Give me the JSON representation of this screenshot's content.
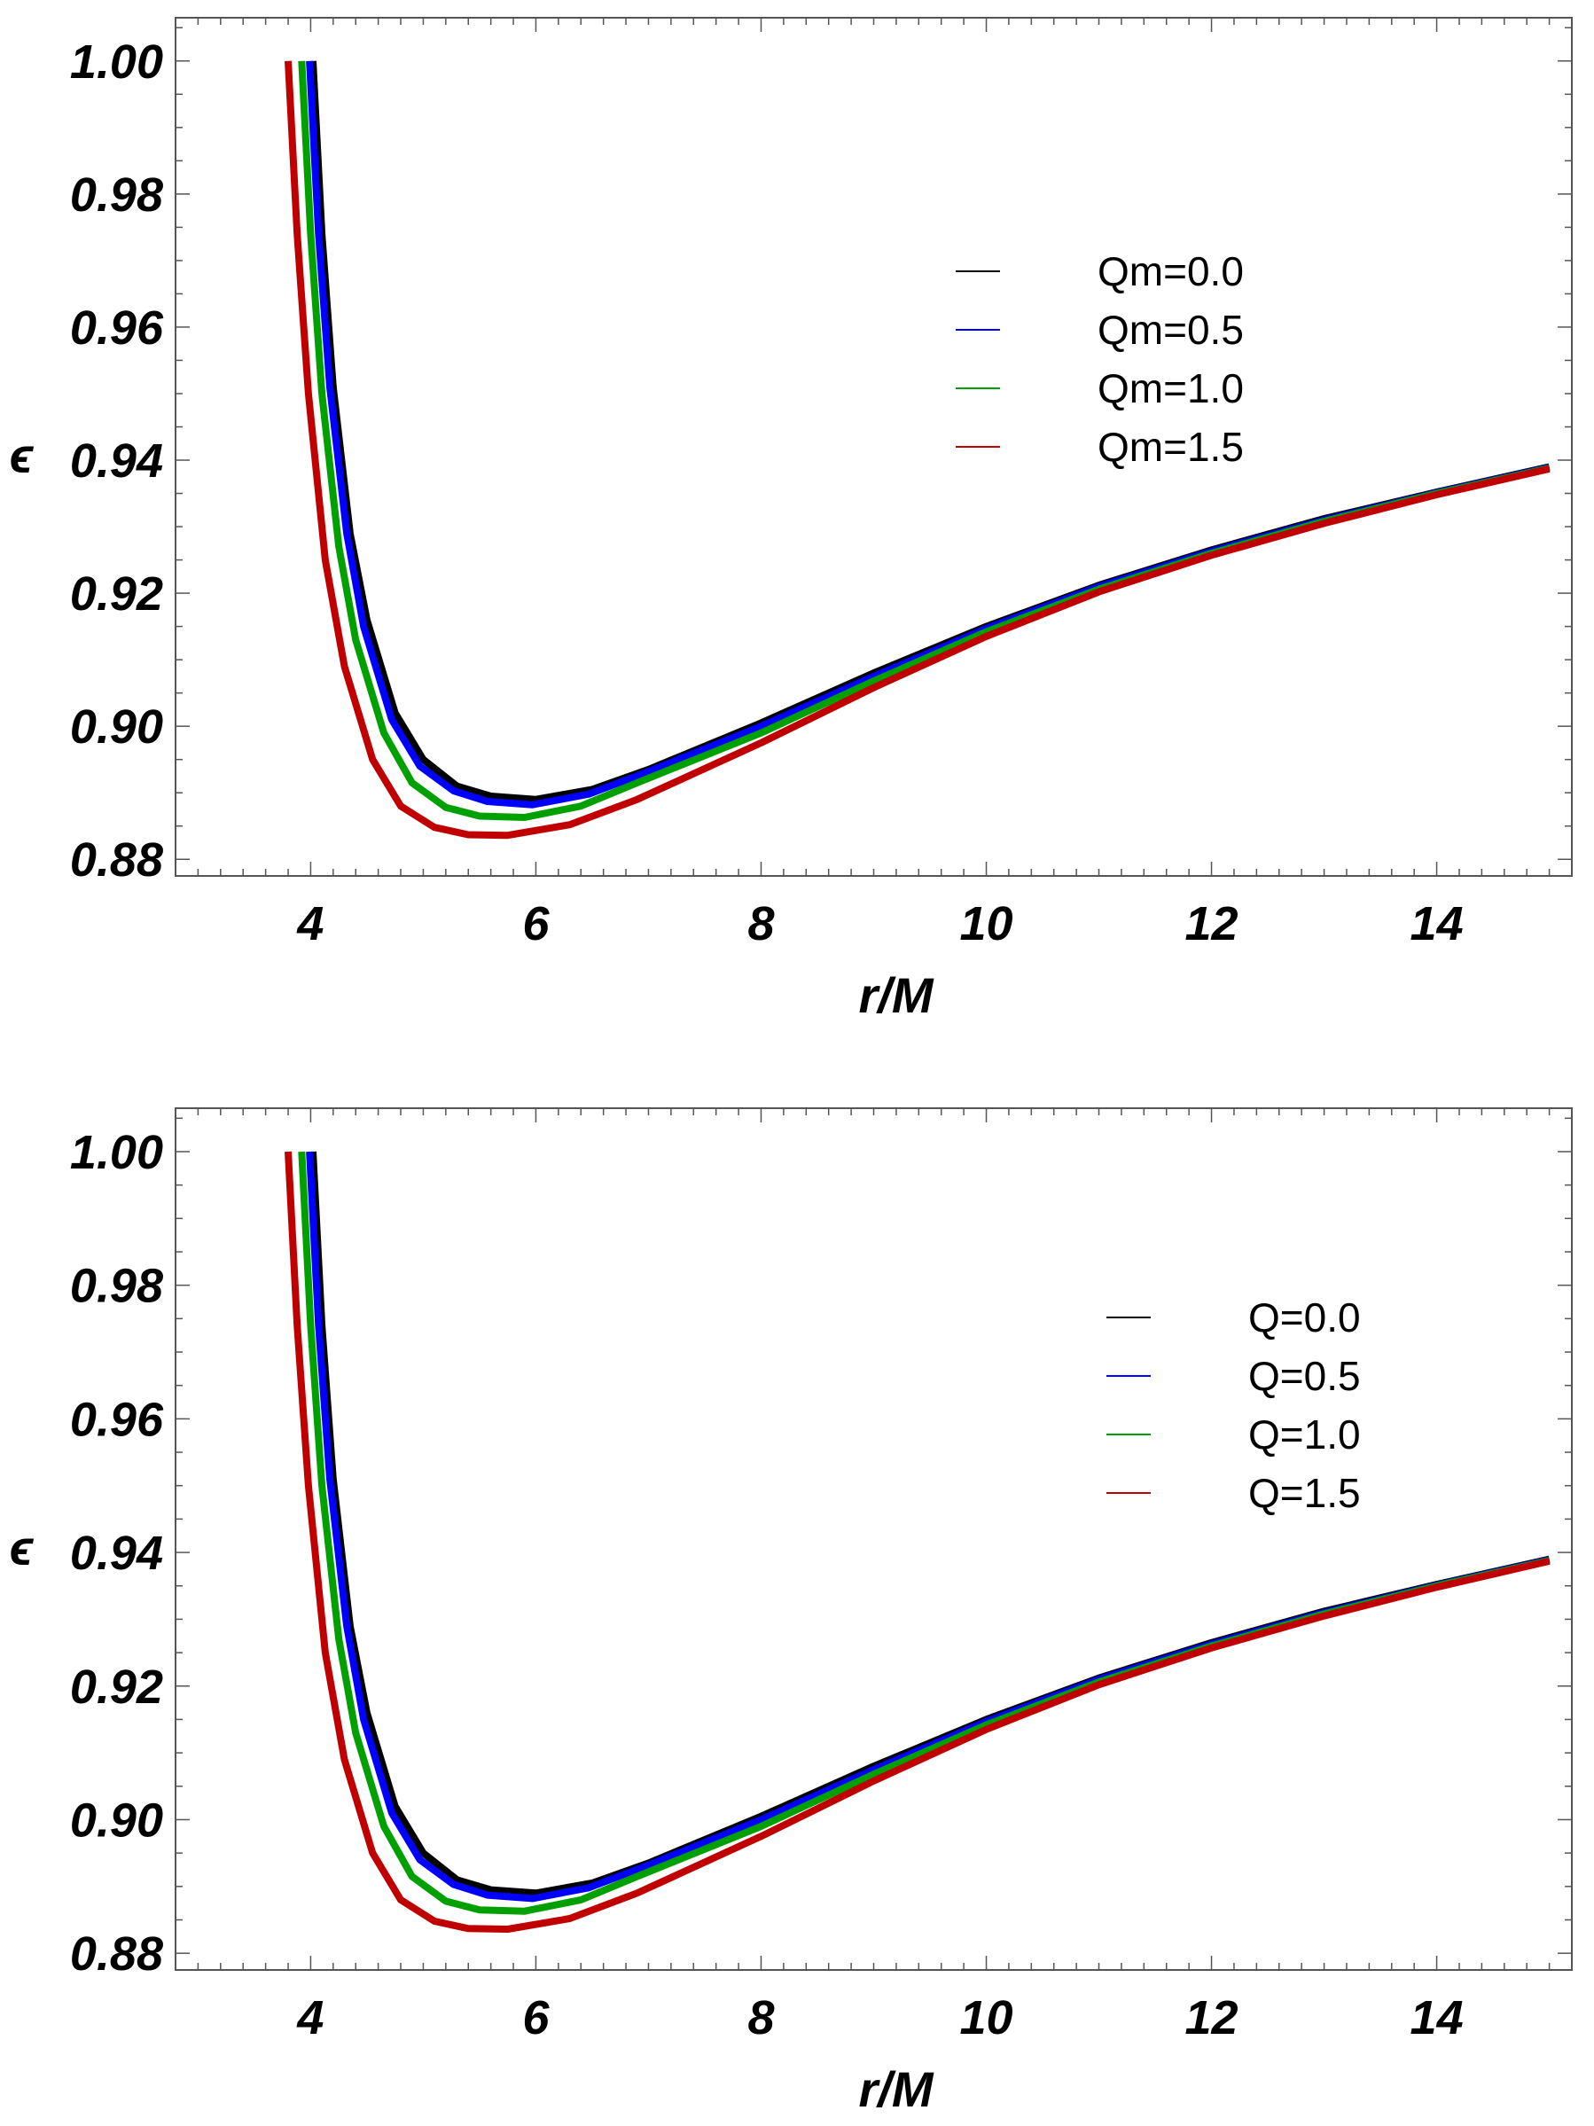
{
  "chart_data": [
    {
      "type": "line",
      "xlabel": "r/M",
      "ylabel": "ϵ",
      "xlim": [
        2.8,
        15.2
      ],
      "ylim": [
        0.8775,
        1.0065
      ],
      "xticks": [
        "4",
        "6",
        "8",
        "10",
        "12",
        "14"
      ],
      "xtick_values": [
        4,
        6,
        8,
        10,
        12,
        14
      ],
      "yticks": [
        "0.88",
        "0.90",
        "0.92",
        "0.94",
        "0.96",
        "0.98",
        "1.00"
      ],
      "ytick_values": [
        0.88,
        0.9,
        0.92,
        0.94,
        0.96,
        0.98,
        1.0
      ],
      "legend_position": "top-right",
      "series": [
        {
          "name": "Qm=0.0",
          "color": "#000000",
          "values": [
            [
              4.02,
              1.0
            ],
            [
              4.1,
              0.974
            ],
            [
              4.2,
              0.951
            ],
            [
              4.35,
              0.929
            ],
            [
              4.5,
              0.916
            ],
            [
              4.75,
              0.902
            ],
            [
              5.0,
              0.895
            ],
            [
              5.3,
              0.891
            ],
            [
              5.6,
              0.8895
            ],
            [
              6.0,
              0.889
            ],
            [
              6.5,
              0.8905
            ],
            [
              7.0,
              0.8935
            ],
            [
              8.0,
              0.9005
            ],
            [
              9.0,
              0.908
            ],
            [
              10.0,
              0.915
            ],
            [
              11.0,
              0.9212
            ],
            [
              12.0,
              0.9265
            ],
            [
              13.0,
              0.9312
            ],
            [
              14.0,
              0.9352
            ],
            [
              15.0,
              0.939
            ]
          ]
        },
        {
          "name": "Qm=0.5",
          "color": "#0000ff",
          "values": [
            [
              3.99,
              1.0
            ],
            [
              4.07,
              0.974
            ],
            [
              4.17,
              0.951
            ],
            [
              4.32,
              0.929
            ],
            [
              4.47,
              0.915
            ],
            [
              4.72,
              0.901
            ],
            [
              4.97,
              0.894
            ],
            [
              5.27,
              0.8903
            ],
            [
              5.57,
              0.8887
            ],
            [
              5.97,
              0.8882
            ],
            [
              6.47,
              0.8898
            ],
            [
              6.97,
              0.893
            ],
            [
              8.0,
              0.9
            ],
            [
              9.0,
              0.9075
            ],
            [
              10.0,
              0.9147
            ],
            [
              11.0,
              0.921
            ],
            [
              12.0,
              0.9263
            ],
            [
              13.0,
              0.931
            ],
            [
              14.0,
              0.9351
            ],
            [
              15.0,
              0.9389
            ]
          ]
        },
        {
          "name": "Qm=1.0",
          "color": "#00a000",
          "values": [
            [
              3.92,
              1.0
            ],
            [
              4.0,
              0.974
            ],
            [
              4.1,
              0.95
            ],
            [
              4.25,
              0.927
            ],
            [
              4.4,
              0.913
            ],
            [
              4.65,
              0.899
            ],
            [
              4.9,
              0.8915
            ],
            [
              5.2,
              0.8878
            ],
            [
              5.5,
              0.8865
            ],
            [
              5.9,
              0.8863
            ],
            [
              6.4,
              0.888
            ],
            [
              6.9,
              0.8915
            ],
            [
              8.0,
              0.899
            ],
            [
              9.0,
              0.9068
            ],
            [
              10.0,
              0.9142
            ],
            [
              11.0,
              0.9206
            ],
            [
              12.0,
              0.926
            ],
            [
              13.0,
              0.9308
            ],
            [
              14.0,
              0.935
            ],
            [
              15.0,
              0.9388
            ]
          ]
        },
        {
          "name": "Qm=1.5",
          "color": "#c00000",
          "values": [
            [
              3.8,
              1.0
            ],
            [
              3.88,
              0.974
            ],
            [
              3.98,
              0.95
            ],
            [
              4.13,
              0.925
            ],
            [
              4.3,
              0.909
            ],
            [
              4.55,
              0.895
            ],
            [
              4.8,
              0.888
            ],
            [
              5.1,
              0.8848
            ],
            [
              5.4,
              0.8837
            ],
            [
              5.75,
              0.8836
            ],
            [
              6.3,
              0.8852
            ],
            [
              6.9,
              0.889
            ],
            [
              8.0,
              0.8975
            ],
            [
              9.0,
              0.9058
            ],
            [
              10.0,
              0.9135
            ],
            [
              11.0,
              0.9202
            ],
            [
              12.0,
              0.9257
            ],
            [
              13.0,
              0.9305
            ],
            [
              14.0,
              0.9348
            ],
            [
              15.0,
              0.9387
            ]
          ]
        }
      ]
    },
    {
      "type": "line",
      "xlabel": "r/M",
      "ylabel": "ϵ",
      "xlim": [
        2.8,
        15.2
      ],
      "ylim": [
        0.8775,
        1.0065
      ],
      "xticks": [
        "4",
        "6",
        "8",
        "10",
        "12",
        "14"
      ],
      "xtick_values": [
        4,
        6,
        8,
        10,
        12,
        14
      ],
      "yticks": [
        "0.88",
        "0.90",
        "0.92",
        "0.94",
        "0.96",
        "0.98",
        "1.00"
      ],
      "ytick_values": [
        0.88,
        0.9,
        0.92,
        0.94,
        0.96,
        0.98,
        1.0
      ],
      "legend_position": "top-right",
      "series": [
        {
          "name": "Q=0.0",
          "color": "#000000",
          "values": [
            [
              4.02,
              1.0
            ],
            [
              4.1,
              0.974
            ],
            [
              4.2,
              0.951
            ],
            [
              4.35,
              0.929
            ],
            [
              4.5,
              0.916
            ],
            [
              4.75,
              0.902
            ],
            [
              5.0,
              0.895
            ],
            [
              5.3,
              0.891
            ],
            [
              5.6,
              0.8895
            ],
            [
              6.0,
              0.889
            ],
            [
              6.5,
              0.8905
            ],
            [
              7.0,
              0.8935
            ],
            [
              8.0,
              0.9005
            ],
            [
              9.0,
              0.908
            ],
            [
              10.0,
              0.915
            ],
            [
              11.0,
              0.9212
            ],
            [
              12.0,
              0.9265
            ],
            [
              13.0,
              0.9312
            ],
            [
              14.0,
              0.9352
            ],
            [
              15.0,
              0.939
            ]
          ]
        },
        {
          "name": "Q=0.5",
          "color": "#0000ff",
          "values": [
            [
              3.99,
              1.0
            ],
            [
              4.07,
              0.974
            ],
            [
              4.17,
              0.951
            ],
            [
              4.32,
              0.929
            ],
            [
              4.47,
              0.915
            ],
            [
              4.72,
              0.901
            ],
            [
              4.97,
              0.894
            ],
            [
              5.27,
              0.8903
            ],
            [
              5.57,
              0.8887
            ],
            [
              5.97,
              0.8882
            ],
            [
              6.47,
              0.8898
            ],
            [
              6.97,
              0.893
            ],
            [
              8.0,
              0.9
            ],
            [
              9.0,
              0.9075
            ],
            [
              10.0,
              0.9147
            ],
            [
              11.0,
              0.921
            ],
            [
              12.0,
              0.9263
            ],
            [
              13.0,
              0.931
            ],
            [
              14.0,
              0.9351
            ],
            [
              15.0,
              0.9389
            ]
          ]
        },
        {
          "name": "Q=1.0",
          "color": "#00a000",
          "values": [
            [
              3.92,
              1.0
            ],
            [
              4.0,
              0.974
            ],
            [
              4.1,
              0.95
            ],
            [
              4.25,
              0.927
            ],
            [
              4.4,
              0.913
            ],
            [
              4.65,
              0.899
            ],
            [
              4.9,
              0.8915
            ],
            [
              5.2,
              0.8878
            ],
            [
              5.5,
              0.8865
            ],
            [
              5.9,
              0.8863
            ],
            [
              6.4,
              0.888
            ],
            [
              6.9,
              0.8915
            ],
            [
              8.0,
              0.899
            ],
            [
              9.0,
              0.9068
            ],
            [
              10.0,
              0.9142
            ],
            [
              11.0,
              0.9206
            ],
            [
              12.0,
              0.926
            ],
            [
              13.0,
              0.9308
            ],
            [
              14.0,
              0.935
            ],
            [
              15.0,
              0.9388
            ]
          ]
        },
        {
          "name": "Q=1.5",
          "color": "#c00000",
          "values": [
            [
              3.8,
              1.0
            ],
            [
              3.88,
              0.974
            ],
            [
              3.98,
              0.95
            ],
            [
              4.13,
              0.925
            ],
            [
              4.3,
              0.909
            ],
            [
              4.55,
              0.895
            ],
            [
              4.8,
              0.888
            ],
            [
              5.1,
              0.8848
            ],
            [
              5.4,
              0.8837
            ],
            [
              5.75,
              0.8836
            ],
            [
              6.3,
              0.8852
            ],
            [
              6.9,
              0.889
            ],
            [
              8.0,
              0.8975
            ],
            [
              9.0,
              0.9058
            ],
            [
              10.0,
              0.9135
            ],
            [
              11.0,
              0.9202
            ],
            [
              12.0,
              0.9257
            ],
            [
              13.0,
              0.9305
            ],
            [
              14.0,
              0.9348
            ],
            [
              15.0,
              0.9387
            ]
          ]
        }
      ]
    }
  ]
}
